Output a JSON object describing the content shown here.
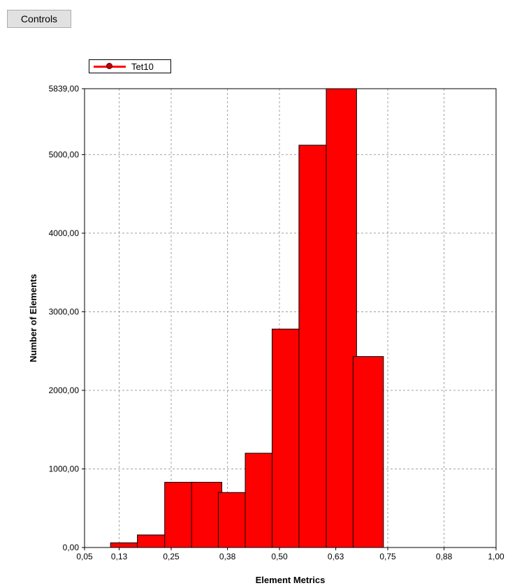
{
  "controls_button": {
    "label": "Controls"
  },
  "legend": {
    "label": "Tet10"
  },
  "colors": {
    "bar_fill": "#ff0000",
    "bar_stroke": "#000000",
    "grid": "#a0a0a0",
    "legend_line": "#ff0000"
  },
  "chart_data": {
    "type": "bar",
    "title": "",
    "xlabel": "Element Metrics",
    "ylabel": "Number of Elements",
    "xlim": [
      0.05,
      1.0
    ],
    "ylim": [
      0,
      5839
    ],
    "x_ticks": [
      {
        "value": 0.05,
        "label": "0,05"
      },
      {
        "value": 0.13,
        "label": "0,13"
      },
      {
        "value": 0.25,
        "label": "0,25"
      },
      {
        "value": 0.38,
        "label": "0,38"
      },
      {
        "value": 0.5,
        "label": "0,50"
      },
      {
        "value": 0.63,
        "label": "0,63"
      },
      {
        "value": 0.75,
        "label": "0,75"
      },
      {
        "value": 0.88,
        "label": "0,88"
      },
      {
        "value": 1.0,
        "label": "1,00"
      }
    ],
    "y_ticks": [
      {
        "value": 0,
        "label": "0,00"
      },
      {
        "value": 1000,
        "label": "1000,00"
      },
      {
        "value": 2000,
        "label": "2000,00"
      },
      {
        "value": 3000,
        "label": "3000,00"
      },
      {
        "value": 4000,
        "label": "4000,00"
      },
      {
        "value": 5000,
        "label": "5000,00"
      },
      {
        "value": 5839,
        "label": "5839,00"
      }
    ],
    "x_grid": [
      0.13,
      0.25,
      0.38,
      0.5,
      0.63,
      0.75,
      0.88
    ],
    "y_grid": [
      1000,
      2000,
      3000,
      4000,
      5000
    ],
    "series": [
      {
        "name": "Tet10",
        "bars": [
          {
            "x0": 0.11,
            "x1": 0.18,
            "value": 60
          },
          {
            "x0": 0.172,
            "x1": 0.242,
            "value": 160
          },
          {
            "x0": 0.235,
            "x1": 0.305,
            "value": 830
          },
          {
            "x0": 0.297,
            "x1": 0.367,
            "value": 830
          },
          {
            "x0": 0.359,
            "x1": 0.429,
            "value": 700
          },
          {
            "x0": 0.421,
            "x1": 0.491,
            "value": 1200
          },
          {
            "x0": 0.483,
            "x1": 0.553,
            "value": 2780
          },
          {
            "x0": 0.545,
            "x1": 0.615,
            "value": 5120
          },
          {
            "x0": 0.608,
            "x1": 0.678,
            "value": 5839
          },
          {
            "x0": 0.67,
            "x1": 0.74,
            "value": 2430
          }
        ]
      }
    ]
  }
}
